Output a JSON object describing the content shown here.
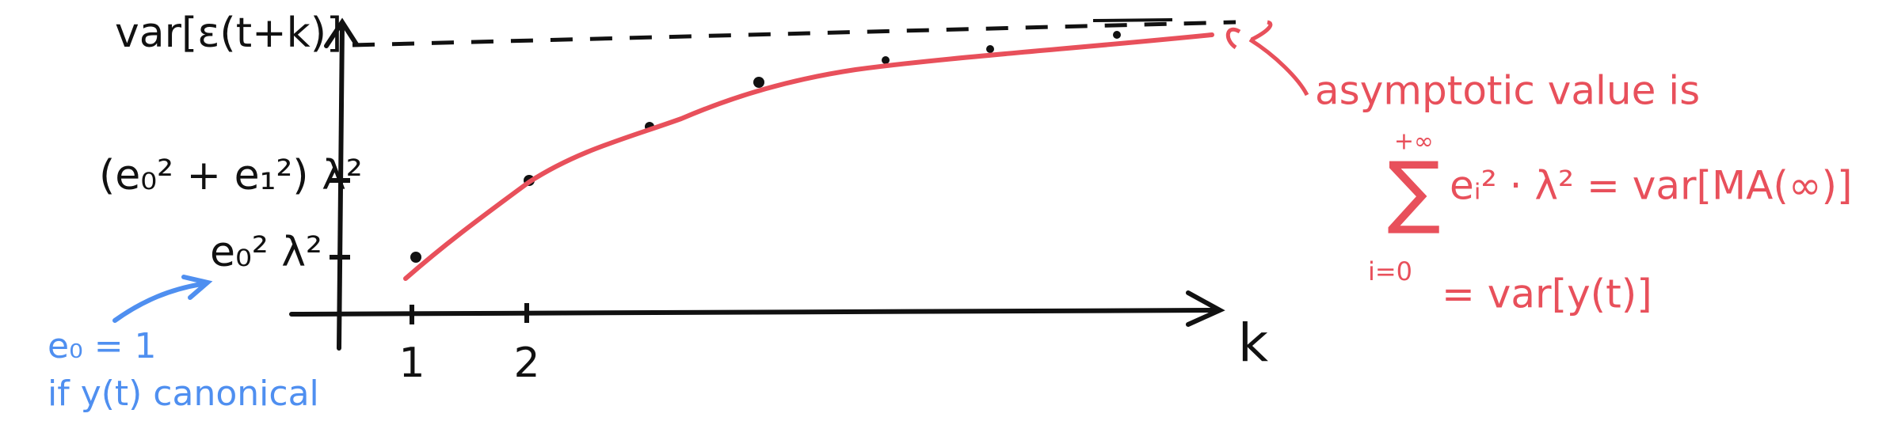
{
  "axes": {
    "y_labels": [
      "var[ε(t+k)]",
      "(e₀² + e₁²) λ²",
      "e₀² λ²"
    ],
    "x_labels": [
      "1",
      "2",
      "k"
    ]
  },
  "note_left": {
    "line1": "e₀ = 1",
    "line2": "if y(t) canonical"
  },
  "note_right": {
    "line1": "asymptotic value is",
    "sum_top": "+∞",
    "sum_symbol": "∑",
    "sum_bottom": "i=0",
    "sum_body": "eᵢ² · λ² = var[MA(∞)]",
    "line3": "= var[y(t)]"
  }
}
